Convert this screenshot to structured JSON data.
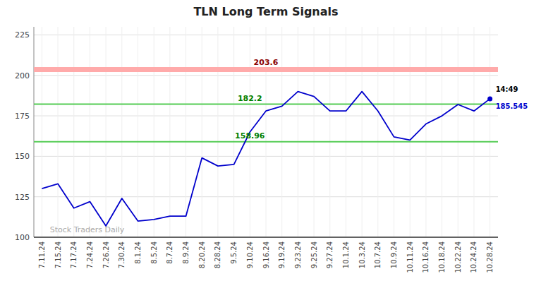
{
  "chart_data": {
    "type": "line",
    "title": "TLN Long Term Signals",
    "categories": [
      "7.11.24",
      "7.15.24",
      "7.17.24",
      "7.24.24",
      "7.26.24",
      "7.30.24",
      "8.1.24",
      "8.5.24",
      "8.7.24",
      "8.9.24",
      "8.20.24",
      "8.28.24",
      "9.5.24",
      "9.10.24",
      "9.16.24",
      "9.19.24",
      "9.23.24",
      "9.25.24",
      "9.27.24",
      "10.1.24",
      "10.3.24",
      "10.7.24",
      "10.9.24",
      "10.11.24",
      "10.16.24",
      "10.18.24",
      "10.22.24",
      "10.24.24",
      "10.28.24"
    ],
    "values": [
      130,
      133,
      118,
      122,
      107,
      124,
      110,
      111,
      113,
      113,
      149,
      144,
      145,
      165,
      178,
      181,
      190,
      187,
      178,
      178,
      190,
      178,
      162,
      160,
      170,
      175,
      182,
      178,
      185.545
    ],
    "color": "#0000cc",
    "ylim": [
      100,
      230
    ],
    "yticks": [
      100,
      125,
      150,
      175,
      200,
      225
    ],
    "grid": true,
    "hlines": [
      {
        "value": 203.6,
        "label": "203.6",
        "color": "#ffaaaa",
        "label_color": "#8b0000"
      },
      {
        "value": 182.2,
        "label": "182.2",
        "color": "#55cc55",
        "label_color": "#008000"
      },
      {
        "value": 158.96,
        "label": "158.96",
        "color": "#55cc55",
        "label_color": "#008000"
      }
    ],
    "last_point_color": "#0000cc",
    "last_point_labels": [
      {
        "text": "14:49",
        "color": "#000000"
      },
      {
        "text": "185.545",
        "color": "#0000cc"
      }
    ],
    "watermark": {
      "text": "Stock Traders Daily",
      "color": "#aaaaaa"
    }
  }
}
